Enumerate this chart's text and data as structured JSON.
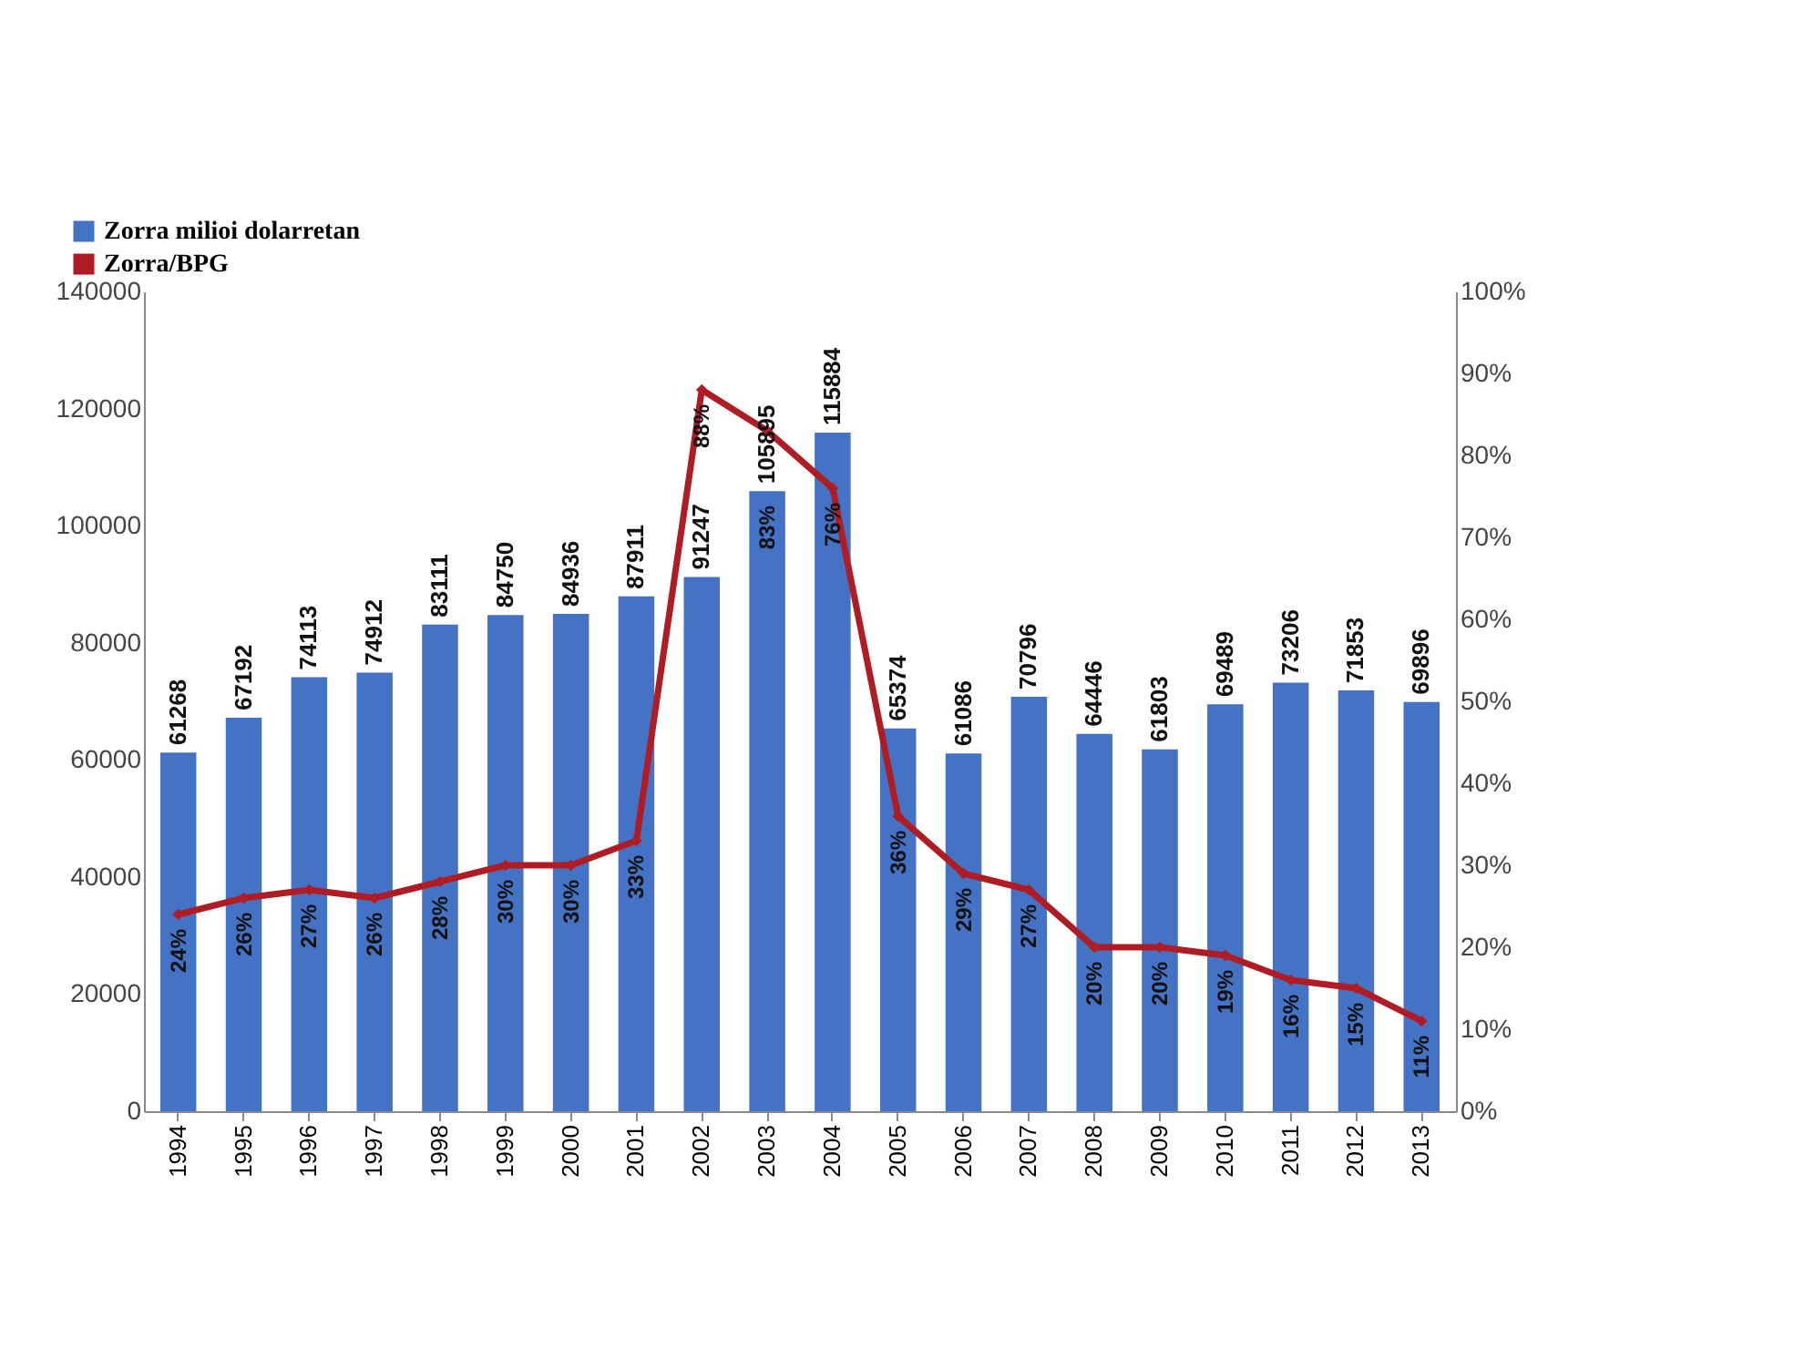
{
  "chart_data": {
    "type": "bar",
    "categories": [
      "1994",
      "1995",
      "1996",
      "1997",
      "1998",
      "1999",
      "2000",
      "2001",
      "2002",
      "2003",
      "2004",
      "2005",
      "2006",
      "2007",
      "2008",
      "2009",
      "2010",
      "2011",
      "2012",
      "2013"
    ],
    "series": [
      {
        "name": "Zorra milioi dolarretan",
        "type": "bar",
        "color": "#4472c4",
        "values": [
          61268,
          67192,
          74113,
          74912,
          83111,
          84750,
          84936,
          87911,
          91247,
          105895,
          115884,
          65374,
          61086,
          70796,
          64446,
          61803,
          69489,
          73206,
          71853,
          69896
        ]
      },
      {
        "name": "Zorra/BPG",
        "type": "line",
        "axis": "y2",
        "color": "#b01c24",
        "marker": "diamond",
        "values": [
          24,
          26,
          27,
          26,
          28,
          30,
          30,
          33,
          88,
          83,
          76,
          36,
          29,
          27,
          20,
          20,
          19,
          16,
          15,
          11
        ],
        "value_labels": [
          "24%",
          "26%",
          "27%",
          "26%",
          "28%",
          "30%",
          "30%",
          "33%",
          "88%",
          "83%",
          "76%",
          "36%",
          "29%",
          "27%",
          "20%",
          "20%",
          "19%",
          "16%",
          "15%",
          "11%"
        ]
      }
    ],
    "data_labels": true,
    "ylim": [
      0,
      140000
    ],
    "yticks": [
      0,
      20000,
      40000,
      60000,
      80000,
      100000,
      120000,
      140000
    ],
    "y2lim": [
      0,
      100
    ],
    "y2ticks": [
      {
        "value": 0,
        "label": "0%"
      },
      {
        "value": 10,
        "label": "10%"
      },
      {
        "value": 20,
        "label": "20%"
      },
      {
        "value": 30,
        "label": "30%"
      },
      {
        "value": 40,
        "label": "40%"
      },
      {
        "value": 50,
        "label": "50%"
      },
      {
        "value": 60,
        "label": "60%"
      },
      {
        "value": 70,
        "label": "70%"
      },
      {
        "value": 80,
        "label": "80%"
      },
      {
        "value": 90,
        "label": "90%"
      },
      {
        "value": 100,
        "label": "100%"
      }
    ],
    "grid": false,
    "legend": "top left"
  }
}
